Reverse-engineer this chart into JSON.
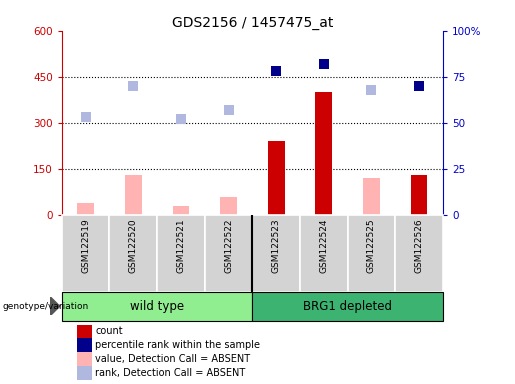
{
  "title": "GDS2156 / 1457475_at",
  "samples": [
    "GSM122519",
    "GSM122520",
    "GSM122521",
    "GSM122522",
    "GSM122523",
    "GSM122524",
    "GSM122525",
    "GSM122526"
  ],
  "group_labels": [
    "wild type",
    "BRG1 depleted"
  ],
  "group_colors": [
    "#90ee90",
    "#3cb371"
  ],
  "count_values": [
    0,
    0,
    0,
    0,
    240,
    400,
    0,
    130
  ],
  "absent_count_values": [
    40,
    130,
    30,
    60,
    0,
    0,
    120,
    0
  ],
  "rank_absent_values": [
    53,
    70,
    52,
    57,
    0,
    0,
    68,
    0
  ],
  "rank_present_values": [
    0,
    0,
    0,
    0,
    78,
    82,
    0,
    70
  ],
  "ylim_left": [
    0,
    600
  ],
  "ylim_right": [
    0,
    100
  ],
  "yticks_left": [
    0,
    150,
    300,
    450,
    600
  ],
  "yticks_right": [
    0,
    25,
    50,
    75,
    100
  ],
  "ytick_labels_right": [
    "0",
    "25",
    "50",
    "75",
    "100%"
  ],
  "grid_values": [
    150,
    300,
    450
  ],
  "bar_width": 0.35,
  "legend_colors": [
    "#cc0000",
    "#00008b",
    "#ffb3b3",
    "#b0b8e0"
  ],
  "legend_labels": [
    "count",
    "percentile rank within the sample",
    "value, Detection Call = ABSENT",
    "rank, Detection Call = ABSENT"
  ]
}
